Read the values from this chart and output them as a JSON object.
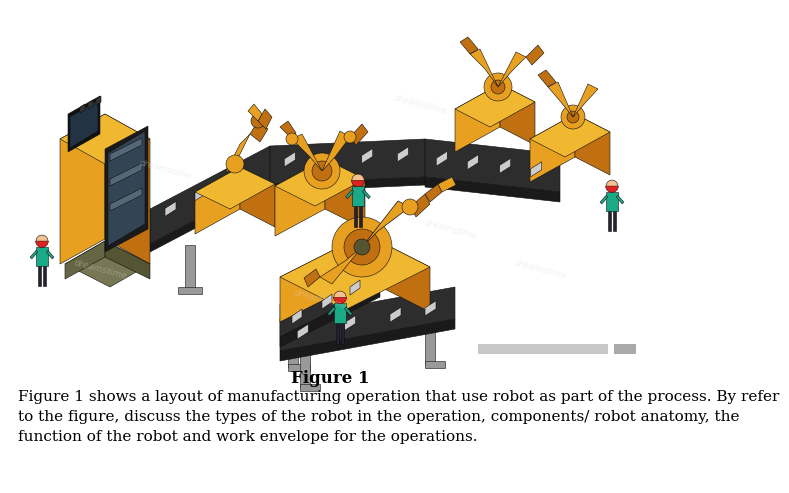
{
  "figure_label": "Figure 1",
  "figure_label_fontsize": 12,
  "figure_label_bold": true,
  "caption_line1": "Figure 1 shows a layout of manufacturing operation that use robot as part of the process. By refer",
  "caption_line2": "to the figure, discuss the types of the robot in the operation, components/ robot anatomy, the",
  "caption_line3": "function of the robot and work envelope for the operations.",
  "caption_fontsize": 11,
  "bg_color": "#ffffff",
  "conveyor_dark": "#2d2d2d",
  "conveyor_darker": "#1a1a1a",
  "robot_yellow": "#E8A020",
  "robot_yellow_dark": "#C07010",
  "robot_yellow_top": "#F0B830",
  "robot_yellow_light": "#F5D070",
  "support_gray": "#999999",
  "worker_teal": "#1AAA88",
  "worker_dark": "#222233",
  "worker_skin": "#F5C090",
  "worker_red_helm": "#DD2222",
  "item_gray": "#cccccc",
  "item_light": "#e0e0e0",
  "gray_bar1_color": "#c8c8c8",
  "gray_bar2_color": "#aaaaaa",
  "machine_screen": "#223344",
  "machine_panel": "#334455",
  "watermark_color": "#d0d0d0"
}
